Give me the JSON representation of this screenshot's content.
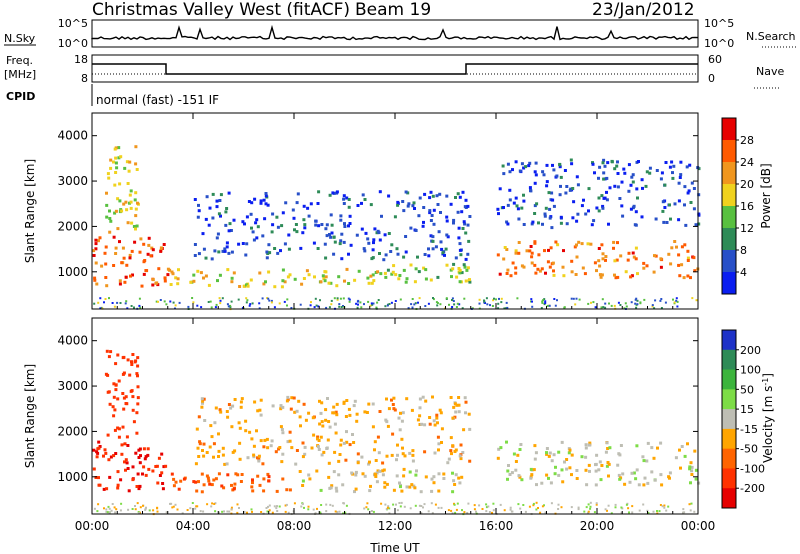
{
  "header": {
    "station": "Christmas Valley West (fitACF)",
    "beam": "Beam 19",
    "date": "23/Jan/2012"
  },
  "status_panels": {
    "nsky_label": "N.Sky",
    "nsky_ticks": [
      "10^5",
      "10^0"
    ],
    "nsearch_label": "N.Search",
    "nsearch_ticks": [
      "10^5",
      "10^0"
    ],
    "freq_label": "Freq.",
    "freq_units": "[MHz]",
    "freq_ticks": [
      "18",
      "8"
    ],
    "nave_label": "Nave",
    "nave_ticks": [
      "60",
      "0"
    ],
    "cpid_label": "CPID",
    "cpid_text": "normal (fast) -151 IF"
  },
  "chart_data": [
    {
      "type": "heatmap",
      "parameter": "power",
      "ylabel": "Slant Range [km]",
      "yticks": [
        1000,
        2000,
        3000,
        4000
      ],
      "ylim": [
        180,
        4500
      ],
      "xticks": [
        "00:00",
        "04:00",
        "08:00",
        "12:00",
        "16:00",
        "20:00",
        "00:00"
      ],
      "xlim_hours": [
        0,
        24
      ],
      "colorbar": {
        "label": "Power [dB]",
        "ticks": [
          "4",
          "8",
          "12",
          "16",
          "20",
          "24",
          "28"
        ],
        "colors": [
          "#0a1ef0",
          "#2850c8",
          "#2e8b57",
          "#58c040",
          "#f0d21e",
          "#f0961e",
          "#ff5a00",
          "#e60000"
        ]
      },
      "echo_regions": [
        {
          "name": "dawn high-power band",
          "start_hour": 0.0,
          "end_hour": 3.0,
          "range_km": [
            700,
            1800
          ],
          "power_db": 26
        },
        {
          "name": "far-range streak",
          "start_hour": 0.5,
          "end_hour": 1.8,
          "range_km": [
            1900,
            3800
          ],
          "power_db": 18
        },
        {
          "name": "near-range band",
          "start_hour": 3.0,
          "end_hour": 11.5,
          "range_km": [
            700,
            1100
          ],
          "power_db": 18
        },
        {
          "name": "mid-range scatter",
          "start_hour": 4.0,
          "end_hour": 15.0,
          "range_km": [
            1300,
            2800
          ],
          "power_db": 5
        },
        {
          "name": "afternoon band",
          "start_hour": 11.5,
          "end_hour": 15.0,
          "range_km": [
            800,
            1200
          ],
          "power_db": 15
        },
        {
          "name": "evening high-power band",
          "start_hour": 16.0,
          "end_hour": 24.0,
          "range_km": [
            900,
            1700
          ],
          "power_db": 24
        },
        {
          "name": "evening far-range echoes",
          "start_hour": 16.0,
          "end_hour": 24.0,
          "range_km": [
            2000,
            3500
          ],
          "power_db": 5
        }
      ]
    },
    {
      "type": "heatmap",
      "parameter": "velocity",
      "ylabel": "Slant Range [km]",
      "yticks": [
        1000,
        2000,
        3000,
        4000
      ],
      "ylim": [
        180,
        4500
      ],
      "xticks": [
        "00:00",
        "04:00",
        "08:00",
        "12:00",
        "16:00",
        "20:00",
        "00:00"
      ],
      "xlim_hours": [
        0,
        24
      ],
      "xlabel": "Time UT",
      "colorbar": {
        "label": "Velocity [m s^-1]",
        "ticks": [
          "200",
          "100",
          "50",
          "15",
          "-15",
          "-50",
          "-100",
          "-200"
        ],
        "colors": [
          "#1e32c8",
          "#2e8b57",
          "#3cb43c",
          "#7ddc46",
          "#bebeb4",
          "#ffa500",
          "#ff6400",
          "#ff3200",
          "#e60000"
        ]
      },
      "echo_regions": [
        {
          "name": "dawn negative velocity",
          "start_hour": 0.0,
          "end_hour": 3.0,
          "range_km": [
            700,
            1800
          ],
          "velocity_ms": -200
        },
        {
          "name": "far-range streak",
          "start_hour": 0.5,
          "end_hour": 1.8,
          "range_km": [
            1900,
            3800
          ],
          "velocity_ms": -150
        },
        {
          "name": "morning negative band",
          "start_hour": 3.0,
          "end_hour": 8.0,
          "range_km": [
            700,
            1100
          ],
          "velocity_ms": -80
        },
        {
          "name": "midday near-zero band",
          "start_hour": 8.0,
          "end_hour": 15.0,
          "range_km": [
            700,
            1200
          ],
          "velocity_ms": -10
        },
        {
          "name": "evening ground scatter",
          "start_hour": 16.0,
          "end_hour": 24.0,
          "range_km": [
            850,
            1800
          ],
          "velocity_ms": 0
        },
        {
          "name": "mid-range scatter",
          "start_hour": 4.0,
          "end_hour": 15.0,
          "range_km": [
            1300,
            2800
          ],
          "velocity_ms": -30
        }
      ]
    }
  ]
}
